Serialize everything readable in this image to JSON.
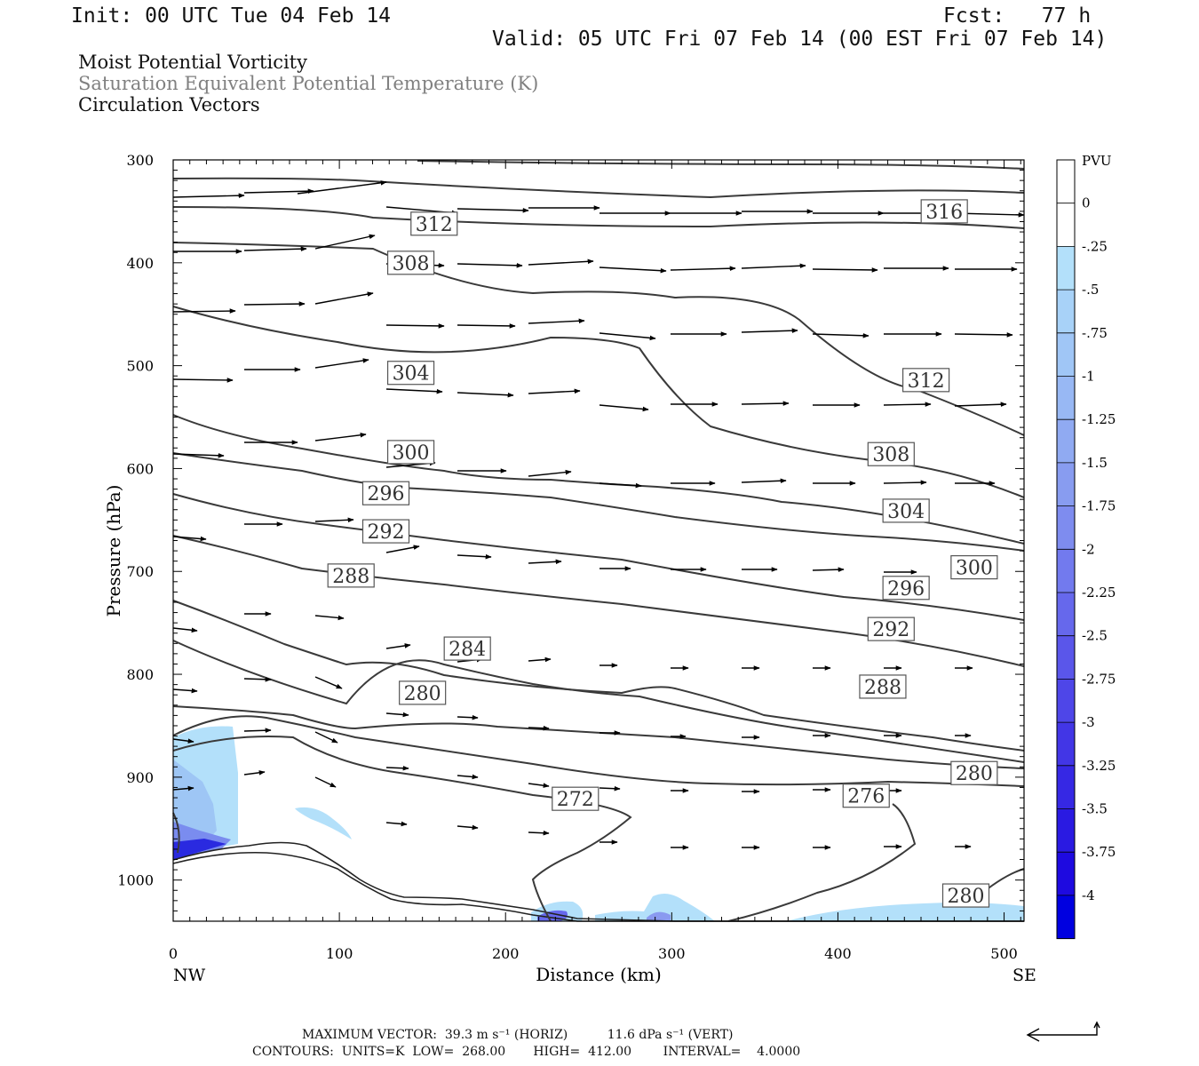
{
  "header": {
    "init": "Init: 00 UTC Tue 04 Feb 14",
    "fcst": "Fcst:   77 h",
    "valid": "Valid: 05 UTC Fri 07 Feb 14 (00 EST Fri 07 Feb 14)"
  },
  "titles": {
    "line1": "Moist Potential Vorticity",
    "line2": "Saturation Equivalent Potential Temperature (K)",
    "line3": "Circulation Vectors"
  },
  "colors": {
    "title2": "#808080",
    "contour": "#3a3a3a",
    "shade_light": "#b3e0fa",
    "shade_mid": "#9ec6f5",
    "shade_deep": "#2a2ae0"
  },
  "footer": {
    "max_vector": "MAXIMUM VECTOR:  39.3 m s⁻¹ (HORIZ)          11.6 dPa s⁻¹ (VERT)",
    "contours": "CONTOURS:  UNITS=K  LOW=  268.00       HIGH=  412.00        INTERVAL=    4.0000"
  },
  "chart_data": {
    "type": "cross-section",
    "xlabel": "Distance (km)",
    "ylabel": "Pressure (hPa)",
    "x_end_labels": [
      "NW",
      "SE"
    ],
    "xlim": [
      0,
      512
    ],
    "ylim": [
      1040,
      300
    ],
    "xticks": [
      0,
      100,
      200,
      300,
      400,
      500
    ],
    "yticks": [
      300,
      400,
      500,
      600,
      700,
      800,
      900,
      1000
    ],
    "colorbar": {
      "units": "PVU",
      "levels": [
        "0",
        "-.25",
        "-.5",
        "-.75",
        "-1",
        "-1.25",
        "-1.5",
        "-1.75",
        "-2",
        "-2.25",
        "-2.5",
        "-2.75",
        "-3",
        "-3.25",
        "-3.5",
        "-3.75",
        "-4"
      ],
      "colors": [
        "#ffffff",
        "#ffffff",
        "#b3e0fa",
        "#a8d2f8",
        "#a0c6f6",
        "#98b8f4",
        "#90aaf2",
        "#889cf0",
        "#7e8cef",
        "#727aee",
        "#6668ec",
        "#5a56ea",
        "#4e46e8",
        "#4236e6",
        "#3628e4",
        "#2a1ae2",
        "#1e0ae0",
        "#0000e0"
      ]
    },
    "contour_labels": [
      {
        "label": "312",
        "x": 157,
        "p": 362
      },
      {
        "label": "316",
        "x": 464,
        "p": 350
      },
      {
        "label": "308",
        "x": 143,
        "p": 400
      },
      {
        "label": "304",
        "x": 143,
        "p": 507
      },
      {
        "label": "312",
        "x": 453,
        "p": 514
      },
      {
        "label": "300",
        "x": 143,
        "p": 584
      },
      {
        "label": "308",
        "x": 432,
        "p": 586
      },
      {
        "label": "296",
        "x": 128,
        "p": 624
      },
      {
        "label": "304",
        "x": 441,
        "p": 641
      },
      {
        "label": "292",
        "x": 128,
        "p": 661
      },
      {
        "label": "300",
        "x": 482,
        "p": 696
      },
      {
        "label": "288",
        "x": 107,
        "p": 704
      },
      {
        "label": "296",
        "x": 441,
        "p": 716
      },
      {
        "label": "292",
        "x": 432,
        "p": 756
      },
      {
        "label": "284",
        "x": 177,
        "p": 775
      },
      {
        "label": "288",
        "x": 427,
        "p": 812
      },
      {
        "label": "280",
        "x": 150,
        "p": 818
      },
      {
        "label": "280",
        "x": 482,
        "p": 896
      },
      {
        "label": "272",
        "x": 242,
        "p": 921
      },
      {
        "label": "276",
        "x": 417,
        "p": 918
      },
      {
        "label": "280",
        "x": 477,
        "p": 1015
      }
    ]
  }
}
